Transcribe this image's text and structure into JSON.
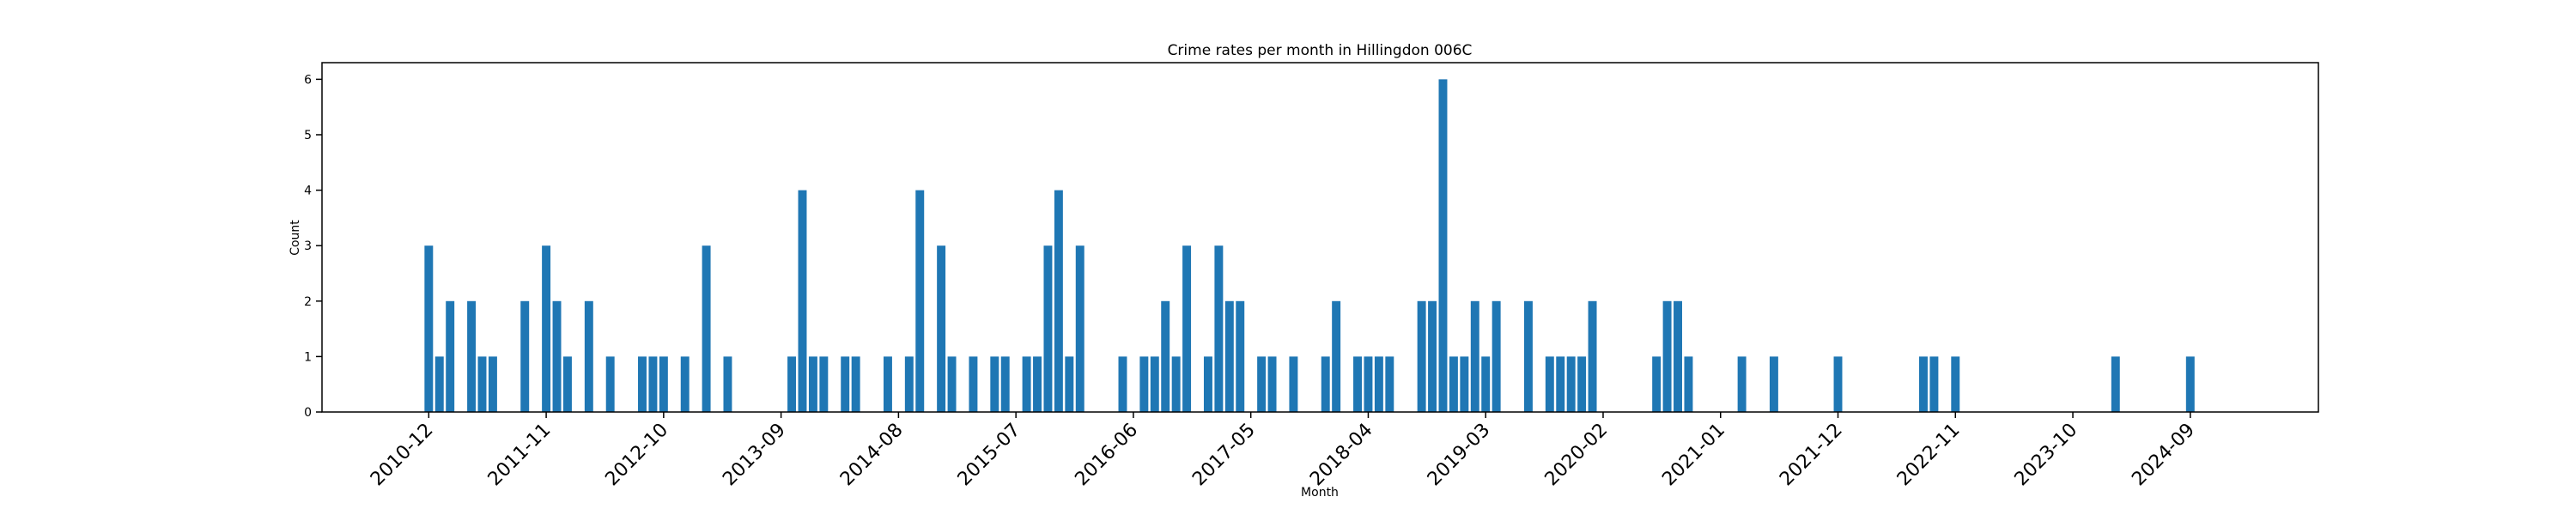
{
  "chart_data": {
    "type": "bar",
    "title": "Crime rates per month in Hillingdon 006C",
    "x_label": "Month",
    "y_label": "Count",
    "color": "#1f77b4",
    "categories": [
      "2010-12",
      null,
      null,
      null,
      null,
      null,
      null,
      null,
      null,
      null,
      null,
      "2011-11",
      null,
      null,
      null,
      null,
      null,
      null,
      null,
      null,
      null,
      null,
      "2012-10",
      null,
      null,
      null,
      null,
      null,
      null,
      null,
      null,
      null,
      null,
      "2013-09",
      null,
      null,
      null,
      null,
      null,
      null,
      null,
      null,
      null,
      null,
      "2014-08",
      null,
      null,
      null,
      null,
      null,
      null,
      null,
      null,
      null,
      null,
      "2015-07",
      null,
      null,
      null,
      null,
      null,
      null,
      null,
      null,
      null,
      null,
      "2016-06",
      null,
      null,
      null,
      null,
      null,
      null,
      null,
      null,
      null,
      null,
      "2017-05",
      null,
      null,
      null,
      null,
      null,
      null,
      null,
      null,
      null,
      null,
      "2018-04",
      null,
      null,
      null,
      null,
      null,
      null,
      null,
      null,
      null,
      null,
      "2019-03",
      null,
      null,
      null,
      null,
      null,
      null,
      null,
      null,
      null,
      null,
      "2020-02",
      null,
      null,
      null,
      null,
      null,
      null,
      null,
      null,
      null,
      null,
      "2021-01",
      null,
      null,
      null,
      null,
      null,
      null,
      null,
      null,
      null,
      null,
      "2021-12",
      null,
      null,
      null,
      null,
      null,
      null,
      null,
      null,
      null,
      null,
      "2022-11",
      null,
      null,
      null,
      null,
      null,
      null,
      null,
      null,
      null,
      null,
      "2023-10",
      null,
      null,
      null,
      null,
      null,
      null,
      null,
      null,
      null,
      null,
      "2024-09"
    ],
    "values": [
      3,
      1,
      2,
      null,
      2,
      1,
      1,
      null,
      null,
      2,
      null,
      3,
      2,
      1,
      null,
      2,
      null,
      1,
      null,
      null,
      1,
      1,
      1,
      null,
      1,
      null,
      3,
      null,
      1,
      null,
      null,
      null,
      null,
      null,
      1,
      4,
      1,
      1,
      null,
      1,
      1,
      null,
      null,
      1,
      null,
      1,
      4,
      null,
      3,
      1,
      null,
      1,
      null,
      1,
      1,
      null,
      1,
      1,
      3,
      4,
      1,
      3,
      null,
      null,
      null,
      1,
      null,
      1,
      1,
      2,
      1,
      3,
      null,
      1,
      3,
      2,
      2,
      null,
      1,
      1,
      null,
      1,
      null,
      null,
      1,
      2,
      null,
      1,
      1,
      1,
      1,
      null,
      null,
      2,
      2,
      6,
      1,
      1,
      2,
      1,
      2,
      null,
      null,
      2,
      null,
      1,
      1,
      1,
      1,
      2,
      null,
      null,
      null,
      null,
      null,
      1,
      2,
      2,
      1,
      null,
      null,
      null,
      null,
      1,
      null,
      null,
      1,
      null,
      null,
      null,
      null,
      null,
      1,
      null,
      null,
      null,
      null,
      null,
      null,
      null,
      1,
      1,
      null,
      1,
      null,
      null,
      null,
      null,
      null,
      null,
      null,
      null,
      null,
      null,
      null,
      null,
      null,
      null,
      1,
      null,
      null,
      null,
      null,
      null,
      null,
      1
    ],
    "ylim": [
      0,
      6.3
    ],
    "yticks": [
      0,
      1,
      2,
      3,
      4,
      5,
      6
    ]
  }
}
